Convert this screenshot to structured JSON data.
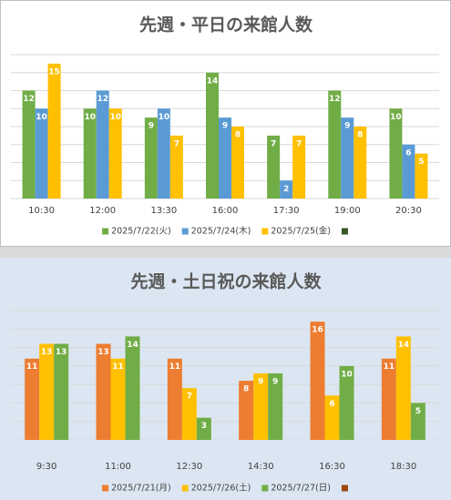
{
  "chart_data": [
    {
      "type": "bar",
      "title": "先週・平日の来館人数",
      "categories": [
        "10:30",
        "12:00",
        "13:30",
        "16:00",
        "17:30",
        "19:00",
        "20:30"
      ],
      "series": [
        {
          "name": "2025/7/22(火)",
          "color": "#70ad47",
          "values": [
            12,
            10,
            9,
            14,
            7,
            12,
            10
          ]
        },
        {
          "name": "2025/7/24(木)",
          "color": "#5b9bd5",
          "values": [
            10,
            12,
            10,
            9,
            2,
            9,
            6
          ]
        },
        {
          "name": "2025/7/25(金)",
          "color": "#ffc000",
          "values": [
            15,
            10,
            7,
            8,
            7,
            8,
            5
          ]
        }
      ],
      "ylim": [
        0,
        16
      ],
      "yticks": [
        0,
        2,
        4,
        6,
        8,
        10,
        12,
        14,
        16
      ],
      "grid": true,
      "legend": "bottom"
    },
    {
      "type": "bar",
      "title": "先週・土日祝の来館人数",
      "categories": [
        "9:30",
        "11:00",
        "12:30",
        "14:30",
        "16:30",
        "18:30"
      ],
      "series": [
        {
          "name": "2025/7/21(月)",
          "color": "#ed7d31",
          "values": [
            11,
            13,
            11,
            8,
            16,
            11
          ]
        },
        {
          "name": "2025/7/26(土)",
          "color": "#ffc000",
          "values": [
            13,
            11,
            7,
            9,
            6,
            14
          ]
        },
        {
          "name": "2025/7/27(日)",
          "color": "#70ad47",
          "values": [
            13,
            14,
            3,
            9,
            10,
            5
          ]
        }
      ],
      "ylim": [
        0,
        17.5
      ],
      "yticks": [
        0,
        2.5,
        5,
        7.5,
        10,
        12.5,
        15,
        17.5
      ],
      "grid": true,
      "legend": "bottom"
    }
  ]
}
